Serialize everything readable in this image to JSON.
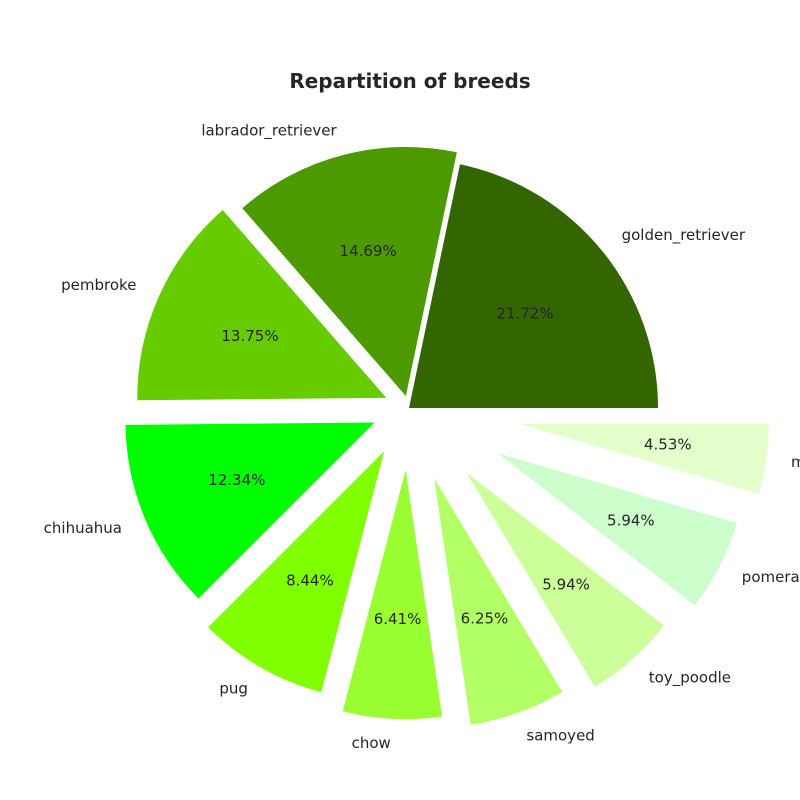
{
  "chart_data": {
    "type": "pie",
    "title": "Repartition of breeds",
    "categories": [
      "golden_retriever",
      "labrador_retriever",
      "pembroke",
      "chihuahua",
      "pug",
      "chow",
      "samoyed",
      "toy_poodle",
      "pomeranian",
      "malamute"
    ],
    "values": [
      21.72,
      14.69,
      13.75,
      12.34,
      8.44,
      6.41,
      6.25,
      5.94,
      5.94,
      4.53
    ],
    "percent_labels": [
      "21.72%",
      "14.69%",
      "13.75%",
      "12.34%",
      "8.44%",
      "6.41%",
      "6.25%",
      "5.94%",
      "5.94%",
      "4.53%"
    ],
    "colors": [
      "#336600",
      "#4c9900",
      "#66cc00",
      "#00ff00",
      "#80ff00",
      "#99ff33",
      "#b3ff66",
      "#ccff99",
      "#ccffcc",
      "#e5ffcc"
    ],
    "explode": [
      0,
      0.05,
      0.1,
      0.15,
      0.2,
      0.25,
      0.3,
      0.35,
      0.4,
      0.45
    ],
    "start_angle": 0,
    "direction": "counterclockwise",
    "legend": "none",
    "grid": false
  }
}
